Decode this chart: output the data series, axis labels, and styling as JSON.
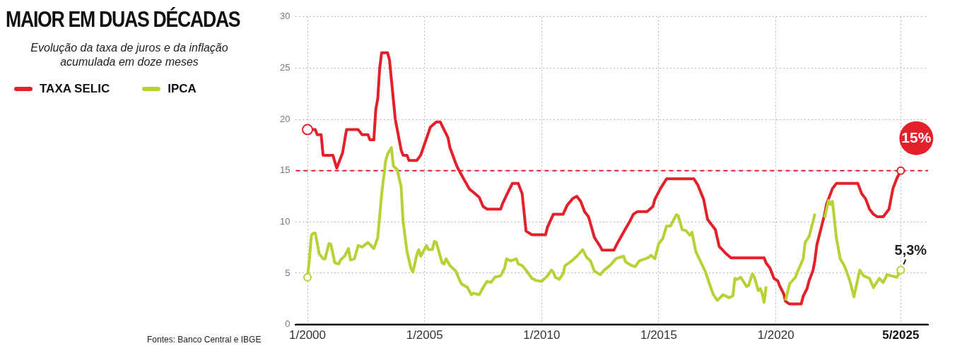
{
  "chart_data": {
    "type": "line",
    "title": "MAIOR EM DUAS DÉCADAS",
    "subtitle": "Evolução da taxa de juros e da inflação acumulada em doze meses",
    "xlim": [
      "1999-07",
      "2026-07"
    ],
    "ylim": [
      0,
      30
    ],
    "xticks": [
      {
        "value": "2000-01",
        "label": "1/2000"
      },
      {
        "value": "2005-01",
        "label": "1/2005"
      },
      {
        "value": "2010-01",
        "label": "1/2010"
      },
      {
        "value": "2015-01",
        "label": "1/2015"
      },
      {
        "value": "2020-01",
        "label": "1/2020"
      },
      {
        "value": "2025-05",
        "label": "5/2025"
      }
    ],
    "yticks": [
      0,
      5,
      10,
      15,
      20,
      25,
      30
    ],
    "grid": true,
    "legend": "top left",
    "line_style": "solid",
    "ref_lines": [
      {
        "axis": "y",
        "value": 15,
        "color": "#e4202a",
        "line_style": "dashed"
      }
    ],
    "annotations": [
      {
        "text": "15%",
        "x": "2025-05",
        "y": 15
      },
      {
        "text": "5,3%",
        "x": "2025-05",
        "y": 5.3
      },
      "Fontes: Banco Central e IBGE"
    ],
    "series": [
      {
        "name": "TAXA SELIC",
        "color": "#e4202a",
        "x": [
          "2000-01",
          "2000-05",
          "2000-06",
          "2000-08",
          "2000-09",
          "2001-02",
          "2001-04",
          "2001-07",
          "2001-09",
          "2002-03",
          "2002-05",
          "2002-08",
          "2002-09",
          "2002-11",
          "2002-12",
          "2003-01",
          "2003-02",
          "2003-03",
          "2003-06",
          "2003-07",
          "2003-10",
          "2004-01",
          "2004-02",
          "2004-04",
          "2004-05",
          "2004-09",
          "2004-11",
          "2005-04",
          "2005-07",
          "2005-09",
          "2006-01",
          "2006-02",
          "2006-05",
          "2006-06",
          "2006-09",
          "2006-12",
          "2007-02",
          "2007-05",
          "2007-07",
          "2007-09",
          "2008-04",
          "2008-05",
          "2008-08",
          "2008-10",
          "2009-01",
          "2009-03",
          "2009-05",
          "2009-08",
          "2010-03",
          "2010-04",
          "2010-07",
          "2010-12",
          "2011-02",
          "2011-05",
          "2011-07",
          "2011-09",
          "2011-11",
          "2012-01",
          "2012-04",
          "2012-07",
          "2012-08",
          "2013-02",
          "2013-04",
          "2013-07",
          "2013-10",
          "2013-12",
          "2014-02",
          "2014-07",
          "2014-10",
          "2014-11",
          "2015-02",
          "2015-05",
          "2016-07",
          "2016-09",
          "2016-12",
          "2017-02",
          "2017-06",
          "2017-08",
          "2017-11",
          "2018-02",
          "2019-07",
          "2019-08",
          "2019-10",
          "2019-11",
          "2019-12",
          "2020-02",
          "2020-03",
          "2020-05",
          "2020-06",
          "2020-08",
          "2021-02",
          "2021-03",
          "2021-05",
          "2021-06",
          "2021-08",
          "2021-09",
          "2021-10",
          "2021-12",
          "2022-02",
          "2022-03",
          "2022-05",
          "2022-06",
          "2022-08",
          "2023-07",
          "2023-08",
          "2023-09",
          "2023-11",
          "2023-12",
          "2024-01",
          "2024-03",
          "2024-05",
          "2024-08",
          "2024-09",
          "2024-11",
          "2024-12",
          "2025-01",
          "2025-03",
          "2025-05"
        ],
        "values": [
          19,
          19,
          18.5,
          18.5,
          16.5,
          16.5,
          15.25,
          16.75,
          19,
          19,
          18.5,
          18.5,
          18,
          18,
          21,
          22,
          25,
          26.5,
          26.5,
          25.8,
          20,
          17,
          16.5,
          16.5,
          16,
          16,
          16.5,
          19.25,
          19.75,
          19.75,
          18.2,
          17.25,
          15.7,
          15.25,
          14.2,
          13.2,
          12.9,
          12.4,
          11.5,
          11.25,
          11.25,
          11.8,
          13,
          13.75,
          13.75,
          12.75,
          9.1,
          8.75,
          8.75,
          9.5,
          10.75,
          10.75,
          11.6,
          12.3,
          12.5,
          12,
          11,
          10.5,
          8.5,
          7.6,
          7.25,
          7.25,
          8,
          9,
          10,
          10.75,
          11,
          11,
          11.5,
          12.2,
          13.3,
          14.2,
          14.2,
          13.6,
          12.2,
          10.25,
          9.25,
          7.6,
          7,
          6.5,
          6.5,
          6,
          5.5,
          5,
          4.5,
          4.25,
          3.75,
          3,
          2.25,
          2,
          2,
          2.75,
          3.5,
          4.25,
          5.25,
          6.25,
          7.75,
          9.25,
          10.75,
          11.75,
          12.75,
          13.25,
          13.75,
          13.75,
          13.25,
          12.75,
          12.25,
          11.75,
          11.25,
          10.75,
          10.5,
          10.5,
          10.75,
          11.25,
          12.25,
          13.25,
          14.25,
          15
        ]
      },
      {
        "name": "IPCA",
        "color": "#b5d334",
        "x": [
          "2000-01",
          "2000-02",
          "2000-03",
          "2000-04",
          "2000-05",
          "2000-07",
          "2000-09",
          "2000-10",
          "2000-12",
          "2001-01",
          "2001-03",
          "2001-05",
          "2001-06",
          "2001-08",
          "2001-10",
          "2001-11",
          "2002-01",
          "2002-03",
          "2002-05",
          "2002-08",
          "2002-11",
          "2003-01",
          "2003-03",
          "2003-05",
          "2003-06",
          "2003-08",
          "2003-09",
          "2003-11",
          "2004-01",
          "2004-02",
          "2004-04",
          "2004-06",
          "2004-07",
          "2004-09",
          "2004-10",
          "2004-11",
          "2005-02",
          "2005-03",
          "2005-05",
          "2005-06",
          "2005-07",
          "2005-10",
          "2005-11",
          "2005-12",
          "2006-02",
          "2006-05",
          "2006-07",
          "2006-08",
          "2006-11",
          "2007-01",
          "2007-02",
          "2007-05",
          "2007-07",
          "2007-09",
          "2007-11",
          "2008-01",
          "2008-04",
          "2008-06",
          "2008-07",
          "2008-09",
          "2008-12",
          "2009-01",
          "2009-03",
          "2009-05",
          "2009-08",
          "2009-10",
          "2010-01",
          "2010-04",
          "2010-06",
          "2010-07",
          "2010-08",
          "2010-10",
          "2010-12",
          "2011-01",
          "2011-03",
          "2011-05",
          "2011-07",
          "2011-10",
          "2011-12",
          "2012-02",
          "2012-04",
          "2012-07",
          "2012-09",
          "2012-12",
          "2013-03",
          "2013-05",
          "2013-07",
          "2013-08",
          "2013-11",
          "2014-01",
          "2014-03",
          "2014-06",
          "2014-08",
          "2014-09",
          "2014-11",
          "2015-01",
          "2015-03",
          "2015-05",
          "2015-07",
          "2015-10",
          "2015-11",
          "2016-01",
          "2016-03",
          "2016-05",
          "2016-06",
          "2016-08",
          "2017-01",
          "2017-03",
          "2017-05",
          "2017-07",
          "2017-10",
          "2018-01",
          "2018-03",
          "2018-04",
          "2018-05",
          "2018-07",
          "2018-10",
          "2018-11",
          "2019-01",
          "2019-02",
          "2019-04",
          "2019-05",
          "2019-06",
          "2019-07",
          "2019-08",
          "2019-09",
          "2020-06",
          "2020-08",
          "2020-11",
          "2020-12",
          "2021-03",
          "2021-04",
          "2021-06",
          "2021-08",
          "2021-09",
          "2021-12",
          "2022-02",
          "2022-04",
          "2022-05",
          "2022-06",
          "2022-08",
          "2022-10",
          "2022-12",
          "2023-01",
          "2023-03",
          "2023-05",
          "2023-08",
          "2023-10",
          "2024-01",
          "2024-03",
          "2024-06",
          "2024-08",
          "2024-10",
          "2025-03",
          "2025-05"
        ],
        "values": [
          4.6,
          6.4,
          8.7,
          8.9,
          8.9,
          6.9,
          6.4,
          6.4,
          7.9,
          7.8,
          6,
          5.9,
          6.3,
          6.65,
          7.4,
          6.3,
          6.4,
          7.7,
          7.55,
          8,
          7.4,
          8.45,
          12.7,
          15.9,
          16.6,
          17.25,
          15.45,
          15.1,
          13.4,
          10,
          7.1,
          5.5,
          5.1,
          6.8,
          7.3,
          6.65,
          7.7,
          7.3,
          7.3,
          8.1,
          8,
          6,
          5.9,
          6.4,
          5.75,
          5.2,
          4.3,
          3.95,
          3.6,
          2.9,
          3.05,
          2.9,
          3.6,
          4.2,
          4.1,
          4.6,
          4.75,
          5.5,
          6.4,
          6.2,
          6.4,
          5.9,
          5.75,
          5.3,
          4.5,
          4.3,
          4.2,
          4.75,
          5.3,
          5.1,
          4.6,
          4.4,
          4.95,
          5.75,
          6,
          6.3,
          6.65,
          7.3,
          6.55,
          6.2,
          5.2,
          4.85,
          5.3,
          5.75,
          6.4,
          6.55,
          6.65,
          6.1,
          5.75,
          5.65,
          6.2,
          6.4,
          6.55,
          6.75,
          6.4,
          7.9,
          8.35,
          9.6,
          9.6,
          10.7,
          10.6,
          9.25,
          9.15,
          8.7,
          9,
          7.1,
          5.1,
          3.95,
          2.9,
          2.35,
          2.9,
          2.6,
          2.8,
          4.5,
          4.4,
          4.6,
          3.7,
          3.8,
          4.95,
          4.6,
          3.3,
          3.5,
          3,
          2.15,
          3.7,
          null,
          2.35,
          3.95,
          4.6,
          5.1,
          6.4,
          8,
          8.55,
          10,
          10.8,
          null,
          10.4,
          12.1,
          11.7,
          12,
          8.45,
          6.4,
          5.75,
          5.3,
          4.2,
          2.7,
          5.3,
          4.75,
          4.5,
          3.6,
          4.5,
          4.1,
          4.85,
          4.6,
          5.3
        ]
      }
    ]
  }
}
